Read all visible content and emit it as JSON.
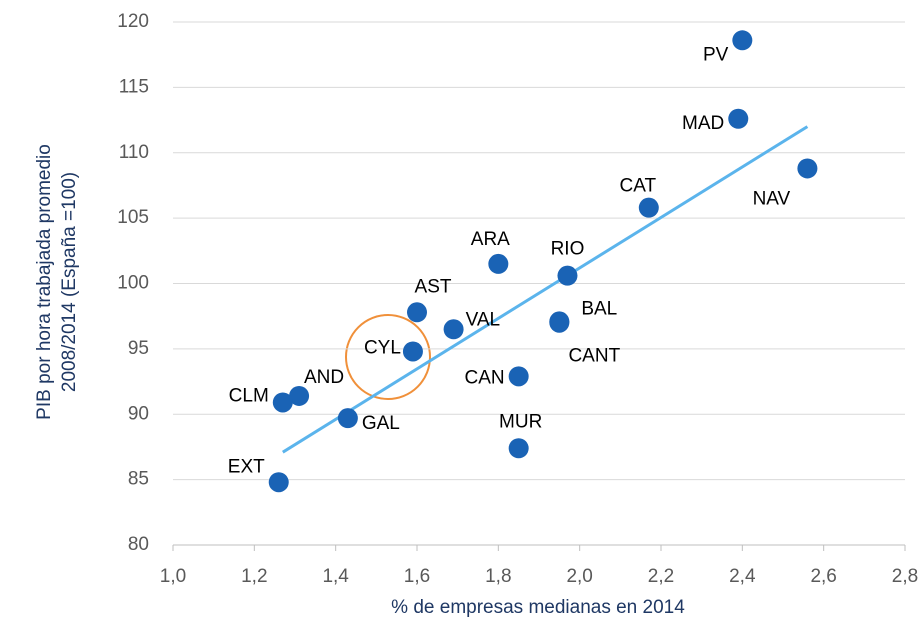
{
  "chart_data": {
    "type": "scatter",
    "x_label": "% de empresas medianas en 2014",
    "y_label": [
      "PIB por hora trabajada promedio",
      "2008/2014  (España =100)"
    ],
    "labels": [
      "PV",
      "MAD",
      "NAV",
      "CAT",
      "RIO",
      "ARA",
      "AST",
      "VAL",
      "BAL",
      "CANT",
      "CYL",
      "CAN",
      "AND",
      "CLM",
      "GAL",
      "MUR",
      "EXT"
    ],
    "x": [
      2.4,
      2.39,
      2.56,
      2.17,
      1.97,
      1.8,
      1.6,
      1.69,
      1.95,
      1.95,
      1.59,
      1.85,
      1.31,
      1.27,
      1.43,
      1.85,
      1.26
    ],
    "y": [
      118.6,
      112.6,
      108.8,
      105.8,
      100.6,
      101.5,
      97.8,
      96.5,
      97.1,
      97.0,
      94.8,
      92.9,
      91.4,
      90.9,
      89.7,
      87.4,
      84.8
    ],
    "color": "#1a63b5",
    "trendline": {
      "x": [
        1.27,
        2.56
      ],
      "y": [
        87.1,
        112.0
      ],
      "color": "#5bb4ec"
    },
    "xlim": [
      1.0,
      2.8
    ],
    "xticks": [
      {
        "value": 1.0,
        "label": "1,0"
      },
      {
        "value": 1.2,
        "label": "1,2"
      },
      {
        "value": 1.4,
        "label": "1,4"
      },
      {
        "value": 1.6,
        "label": "1,6"
      },
      {
        "value": 1.8,
        "label": "1,8"
      },
      {
        "value": 2.0,
        "label": "2,0"
      },
      {
        "value": 2.2,
        "label": "2,2"
      },
      {
        "value": 2.4,
        "label": "2,4"
      },
      {
        "value": 2.6,
        "label": "2,6"
      },
      {
        "value": 2.8,
        "label": "2,8"
      }
    ],
    "ylim": [
      80,
      120
    ],
    "yticks": [
      80,
      85,
      90,
      95,
      100,
      105,
      110,
      115,
      120
    ],
    "grid": true
  }
}
